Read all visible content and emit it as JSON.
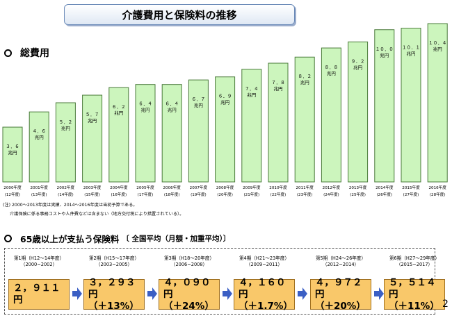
{
  "title": "介護費用と保険料の推移",
  "section1": "総費用",
  "section2_main": "65歳以上が支払う保険料",
  "section2_sub": "〔 全国平均（月額・加重平均）〕",
  "notes": [
    "(注) 2000～2013年度は実績、2014～2016年度は当初予算である。",
    "介護保険に係る事務コストや人件費などは含まない（地方交付税により措置されている）。"
  ],
  "page_number": "2",
  "colors": {
    "bar_fill": "#ccf5bd",
    "bar_stroke": "#4a7a3a",
    "premium_fill": "#f9c86a",
    "arrow": "#3b5fc4"
  },
  "chart_data": {
    "type": "bar",
    "unit": "兆円",
    "categories": [
      "2000年度",
      "2001年度",
      "2002年度",
      "2003年度",
      "2004年度",
      "2005年度",
      "2006年度",
      "2007年度",
      "2008年度",
      "2009年度",
      "2010年度",
      "2011年度",
      "2012年度",
      "2013年度",
      "2014年度",
      "2015年度",
      "2016年度"
    ],
    "sub_categories": [
      "(12年度)",
      "(13年度)",
      "(14年度)",
      "(15年度)",
      "(16年度)",
      "(17年度)",
      "(18年度)",
      "(19年度)",
      "(20年度)",
      "(21年度)",
      "(22年度)",
      "(23年度)",
      "(24年度)",
      "(25年度)",
      "(26年度)",
      "(27年度)",
      "(28年度)"
    ],
    "values": [
      3.6,
      4.6,
      5.2,
      5.7,
      6.2,
      6.4,
      6.4,
      6.7,
      6.9,
      7.4,
      7.8,
      8.2,
      8.8,
      9.2,
      10.0,
      10.1,
      10.4
    ],
    "value_labels": [
      "３．６",
      "４．６",
      "５．２",
      "５．７",
      "６．２",
      "６．４",
      "６．４",
      "６．７",
      "６．９",
      "７．４",
      "７．８",
      "８．２",
      "８．８",
      "９．２",
      "１０．０",
      "１０．１",
      "１０．４"
    ],
    "ylim": [
      0,
      10.4
    ]
  },
  "periods": [
    {
      "label": "第1期（H12～14年度）",
      "years": "（2000~2002）",
      "amount": "２，９１１円",
      "change": ""
    },
    {
      "label": "第2期（H15～17年度）",
      "years": "（2003~2005）",
      "amount": "３，２９３円",
      "change": "（＋13%）"
    },
    {
      "label": "第3期（H18～20年度）",
      "years": "（2006~2008）",
      "amount": "４，０９０円",
      "change": "（＋24%）"
    },
    {
      "label": "第4期（H21～23年度）",
      "years": "（2009~2011）",
      "amount": "４，１６０円",
      "change": "（＋1.7%）"
    },
    {
      "label": "第5期（H24～26年度）",
      "years": "（2012~2014）",
      "amount": "４，９７２円",
      "change": "（＋20%）"
    },
    {
      "label": "第6期（H27～29年度）",
      "years": "（2015~2017）",
      "amount": "５，５１４円",
      "change": "（＋11%）"
    }
  ]
}
